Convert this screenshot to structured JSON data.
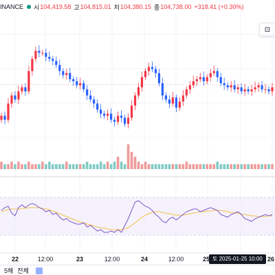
{
  "legend": {
    "symbol": "INANCE",
    "open_label": "시",
    "open": "104,419.58",
    "high_label": "고",
    "high": "104,815.01",
    "low_label": "저",
    "low": "104,380.15",
    "close_label": "종",
    "close": "104,738.00",
    "change": "+318.41 (+0.30%)",
    "status_color": "#089981"
  },
  "colors": {
    "up": "#f23645",
    "down": "#2962ff",
    "vol_up": "#ef9a9a",
    "vol_down": "#80cbc4",
    "rsi_line": "#7e57c2",
    "rsi_ma": "#f5c04a"
  },
  "time_axis": {
    "labels": [
      "22",
      "12:00",
      "23",
      "12:00",
      "24",
      "12:00",
      "25",
      "12:00",
      "26"
    ],
    "crosshair": "토 2025-01-25  10:00"
  },
  "bottom_bar": {
    "interval": "5해",
    "all": "전체"
  },
  "chart_data": {
    "type": "candlestick",
    "price_series": [
      96,
      94,
      102,
      106,
      104,
      108,
      110,
      108,
      118,
      124,
      128,
      127,
      127,
      125,
      124,
      123,
      121,
      118,
      116,
      117,
      114,
      113,
      111,
      112,
      109,
      106,
      104,
      102,
      99,
      97,
      96,
      97,
      94,
      93,
      96,
      95,
      92,
      95,
      101,
      106,
      110,
      115,
      118,
      120,
      119,
      117,
      112,
      106,
      104,
      102,
      105,
      100,
      103,
      106,
      109,
      111,
      113,
      114,
      115,
      113,
      115,
      117,
      118,
      115,
      112,
      111,
      110,
      111,
      109,
      110,
      108,
      109,
      108,
      109,
      110,
      111,
      109,
      109,
      108,
      110
    ],
    "volume_series": [
      3,
      2,
      2,
      3,
      2,
      3,
      2,
      2,
      3,
      2,
      2,
      2,
      3,
      2,
      3,
      2,
      2,
      2,
      2,
      3,
      2,
      2,
      2,
      2,
      2,
      3,
      2,
      2,
      2,
      3,
      2,
      3,
      2,
      3,
      5,
      3,
      2,
      10,
      7,
      5,
      3,
      2,
      3,
      2,
      2,
      2,
      2,
      2,
      2,
      2,
      2,
      2,
      2,
      2,
      3,
      2,
      2,
      2,
      2,
      2,
      2,
      2,
      2,
      3,
      2,
      2,
      2,
      2,
      2,
      2,
      2,
      2,
      2,
      2,
      2,
      2,
      2,
      2,
      2,
      2
    ],
    "rsi_series": [
      56,
      60,
      62,
      52,
      48,
      60,
      64,
      60,
      64,
      66,
      64,
      60,
      58,
      54,
      56,
      50,
      52,
      46,
      42,
      44,
      40,
      38,
      36,
      36,
      38,
      32,
      34,
      30,
      26,
      28,
      24,
      24,
      26,
      24,
      28,
      24,
      34,
      44,
      56,
      68,
      70,
      66,
      62,
      60,
      56,
      50,
      46,
      40,
      38,
      44,
      46,
      42,
      46,
      50,
      54,
      56,
      58,
      58,
      54,
      56,
      58,
      60,
      58,
      56,
      50,
      48,
      46,
      50,
      52,
      54,
      50,
      44,
      42,
      40,
      44,
      46,
      48,
      50,
      48,
      50
    ],
    "rsi_ma_series": [
      54,
      56,
      57,
      58,
      58,
      58,
      59,
      59,
      60,
      60,
      60,
      60,
      59,
      58,
      57,
      55,
      53,
      51,
      49,
      47,
      45,
      43,
      41,
      39,
      38,
      36,
      35,
      33,
      32,
      31,
      30,
      29,
      28,
      28,
      28,
      28,
      29,
      31,
      34,
      38,
      42,
      46,
      49,
      51,
      53,
      54,
      54,
      53,
      52,
      51,
      50,
      49,
      49,
      49,
      50,
      51,
      52,
      53,
      54,
      54,
      55,
      55,
      56,
      56,
      56,
      55,
      54,
      53,
      52,
      52,
      51,
      50,
      49,
      48,
      48,
      47,
      47,
      47,
      48,
      48
    ],
    "rsi_ylim": [
      0,
      100
    ]
  }
}
